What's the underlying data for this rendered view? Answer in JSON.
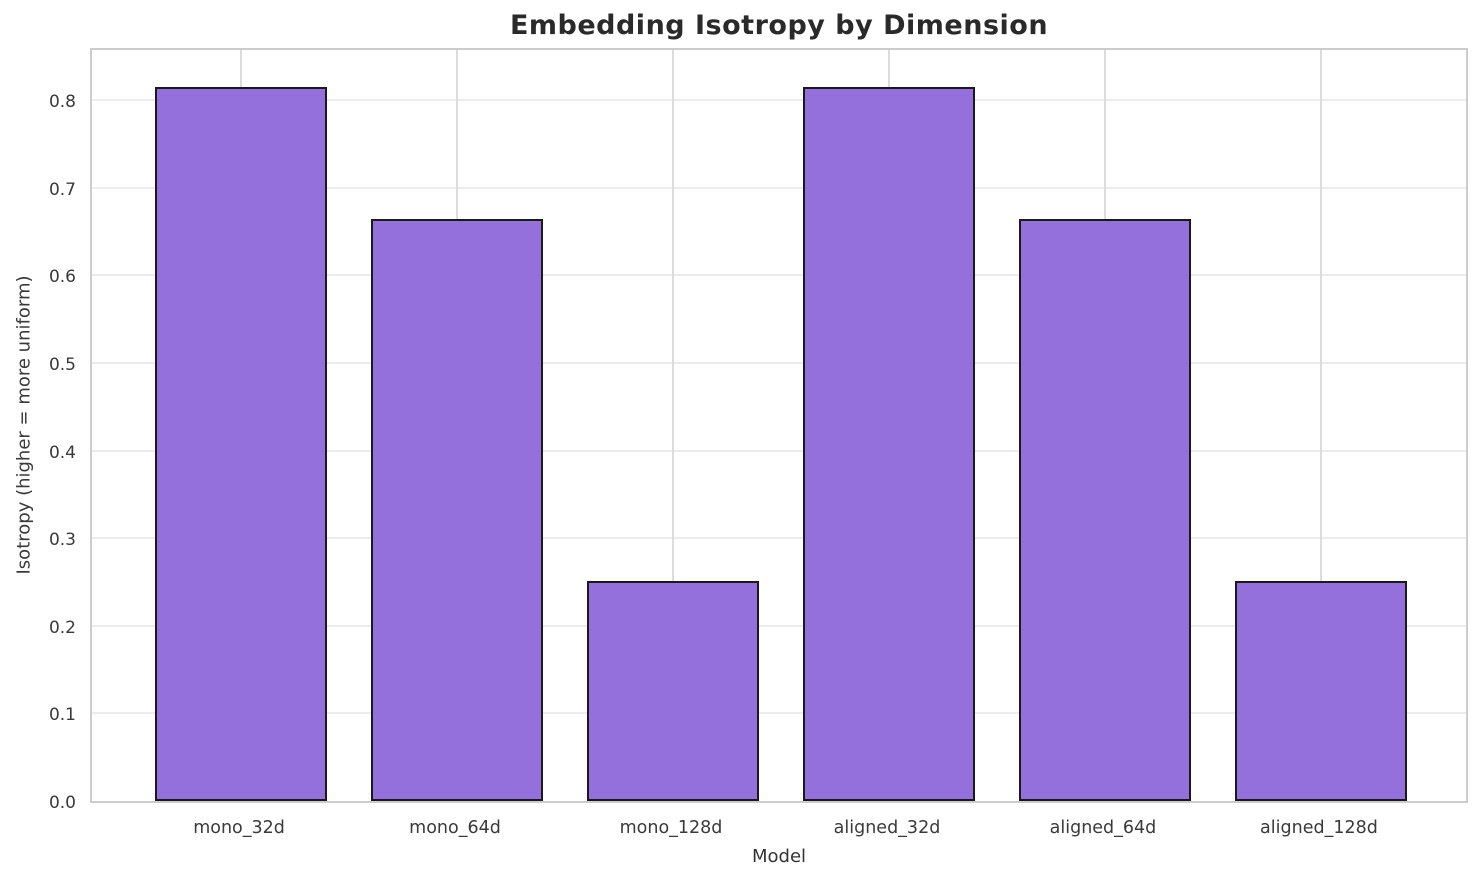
{
  "chart_data": {
    "type": "bar",
    "title": "Embedding Isotropy by Dimension",
    "xlabel": "Model",
    "ylabel": "Isotropy (higher = more uniform)",
    "categories": [
      "mono_32d",
      "mono_64d",
      "mono_128d",
      "aligned_32d",
      "aligned_64d",
      "aligned_128d"
    ],
    "values": [
      0.815,
      0.664,
      0.251,
      0.815,
      0.664,
      0.251
    ],
    "ylim": [
      0,
      0.862
    ],
    "yticks": [
      "0.0",
      "0.1",
      "0.2",
      "0.3",
      "0.4",
      "0.5",
      "0.6",
      "0.7",
      "0.8"
    ],
    "grid": true,
    "legend": null,
    "bar_color": "#9370db",
    "bar_edge_color": "#1a1a1a",
    "grid_color": "#ececec",
    "spine_color": "#cccccc",
    "title_color": "#2a2a2a",
    "tick_label_color": "#3a3a3a"
  }
}
